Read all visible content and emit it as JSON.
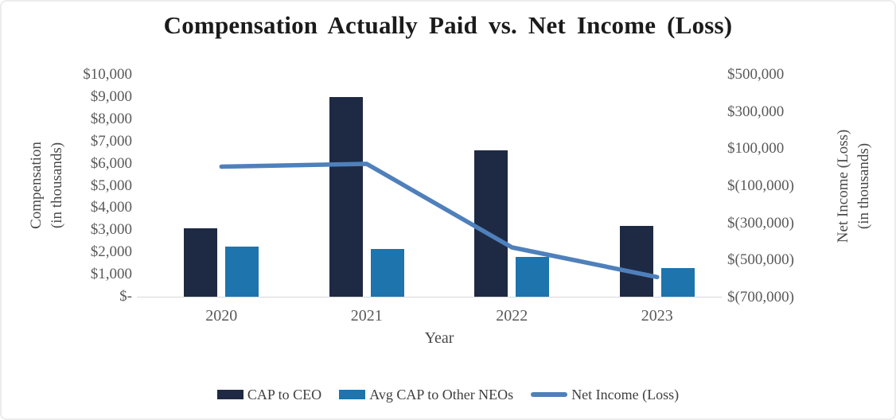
{
  "frame": {
    "background": "#ffffff",
    "border_color": "#ececec"
  },
  "title": "Compensation Actually Paid vs. Net Income (Loss)",
  "chart_data": {
    "type": "combo-bar-line",
    "title": "Compensation Actually Paid vs. Net Income (Loss)",
    "xlabel": "Year",
    "categories": [
      "2020",
      "2021",
      "2022",
      "2023"
    ],
    "series": [
      {
        "name": "CAP to CEO",
        "type": "bar",
        "axis": "left",
        "color": "#1e2a44",
        "values": [
          3100,
          9000,
          6600,
          3200
        ]
      },
      {
        "name": "Avg CAP to Other NEOs",
        "type": "bar",
        "axis": "left",
        "color": "#1e74ad",
        "values": [
          2250,
          2150,
          1800,
          1300
        ]
      },
      {
        "name": "Net Income (Loss)",
        "type": "line",
        "axis": "right",
        "color": "#4f80bb",
        "values": [
          5000,
          20000,
          -430000,
          -590000
        ]
      }
    ],
    "left_axis": {
      "title_lines": [
        "Compensation",
        "(in thousands)"
      ],
      "min": 0,
      "max": 10000,
      "ticks": [
        {
          "value": 10000,
          "label": "$10,000"
        },
        {
          "value": 9000,
          "label": "$9,000"
        },
        {
          "value": 8000,
          "label": "$8,000"
        },
        {
          "value": 7000,
          "label": "$7,000"
        },
        {
          "value": 6000,
          "label": "$6,000"
        },
        {
          "value": 5000,
          "label": "$5,000"
        },
        {
          "value": 4000,
          "label": "$4,000"
        },
        {
          "value": 3000,
          "label": "$3,000"
        },
        {
          "value": 2000,
          "label": "$2,000"
        },
        {
          "value": 1000,
          "label": "$1,000"
        },
        {
          "value": 0,
          "label": "$-"
        }
      ]
    },
    "right_axis": {
      "title_lines": [
        "Net Income (Loss)",
        "(in thousands)"
      ],
      "min": -700000,
      "max": 500000,
      "ticks": [
        {
          "value": 500000,
          "label": "$500,000"
        },
        {
          "value": 300000,
          "label": "$300,000"
        },
        {
          "value": 100000,
          "label": "$100,000"
        },
        {
          "value": -100000,
          "label": "$(100,000)"
        },
        {
          "value": -300000,
          "label": "$(300,000)"
        },
        {
          "value": -500000,
          "label": "$(500,000)"
        },
        {
          "value": -700000,
          "label": "$(700,000)"
        }
      ]
    },
    "grid": false,
    "legend_position": "bottom"
  }
}
